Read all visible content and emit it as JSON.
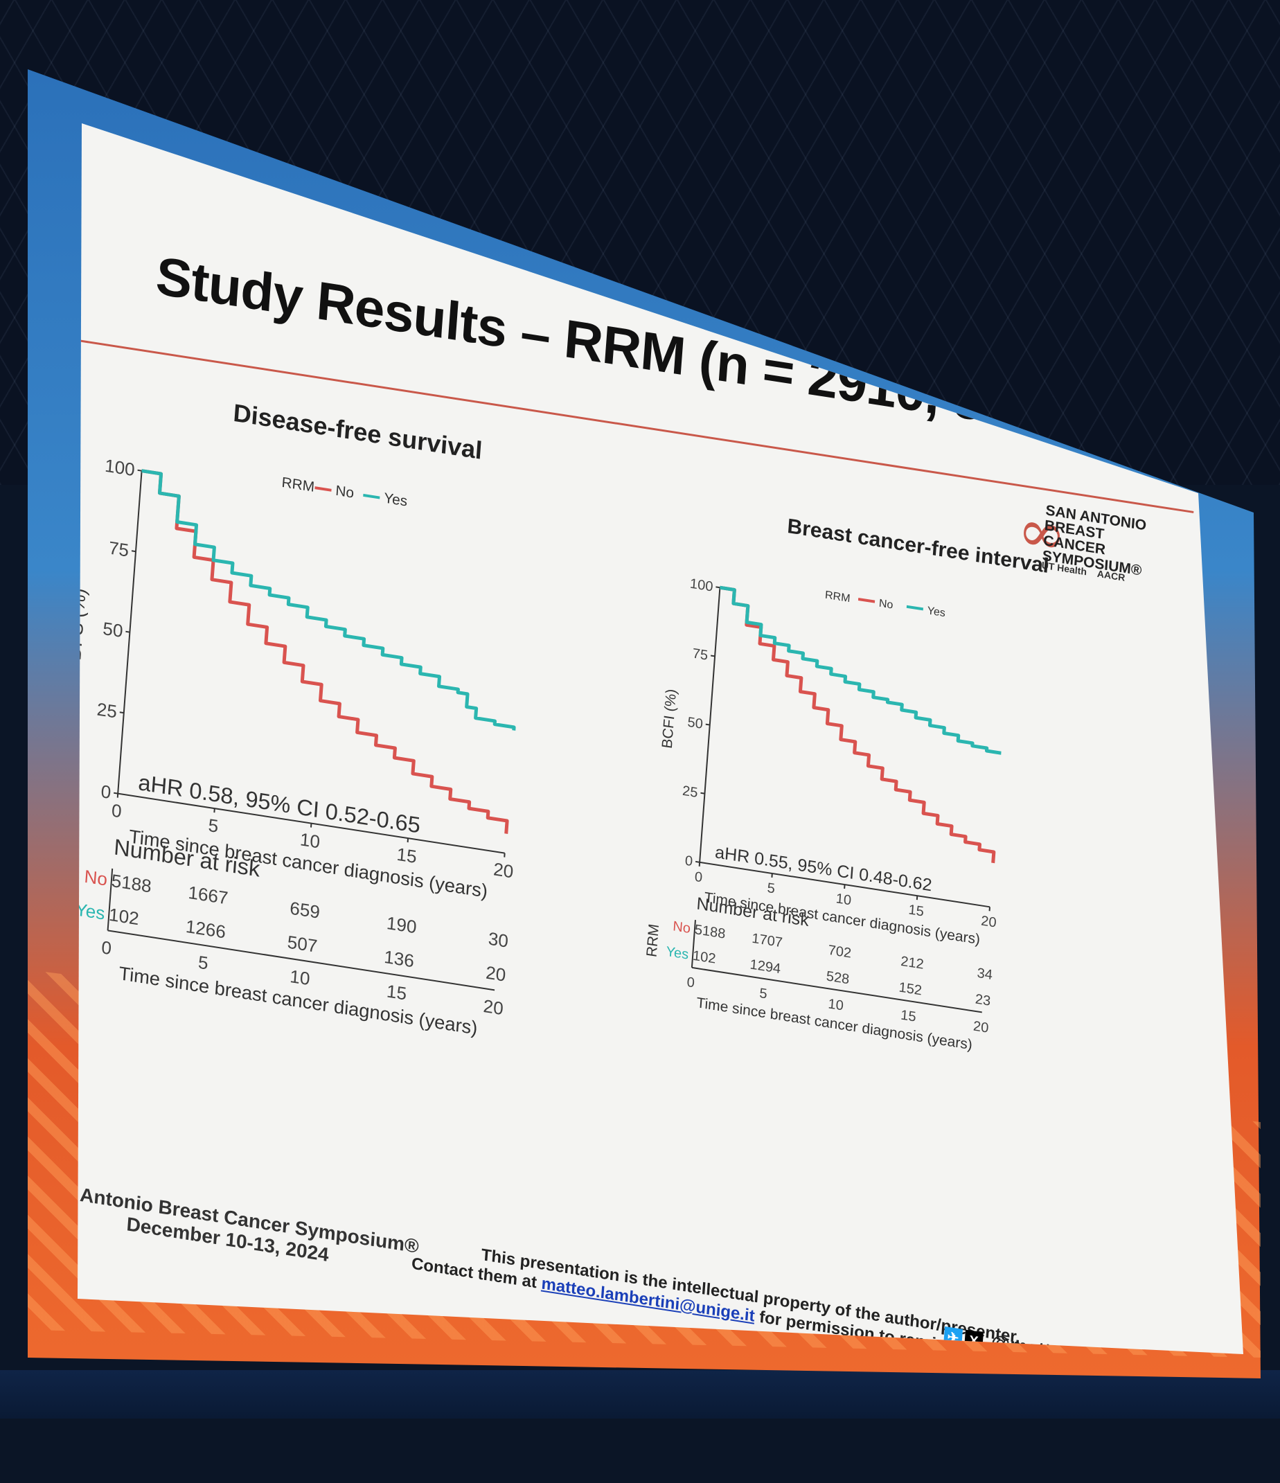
{
  "slide": {
    "title": "Study Results – RRM (n = 2910, 55.0%)",
    "logo": {
      "lines": [
        "SAN ANTONIO",
        "BREAST CANCER",
        "SYMPOSIUM®"
      ],
      "partner1": "UT Health",
      "partner2": "AACR"
    },
    "footer": {
      "conference": "San Antonio Breast Cancer Symposium®",
      "dates": "December 10-13, 2024",
      "ip_notice": "This presentation is the intellectual property of the author/presenter.",
      "contact_prefix": "Contact them at",
      "contact_email": "matteo.lambertini@unige.it",
      "contact_suffix": "for permission to reprint and/or distribute",
      "handle": "@matteolambe"
    }
  },
  "colors": {
    "no": "#d9534f",
    "yes": "#2bb6b0",
    "axis": "#333333",
    "title_rule": "#c9584a"
  },
  "chart_data": [
    {
      "type": "line",
      "title": "Disease-free survival",
      "xlabel": "Time since breast cancer diagnosis (years)",
      "ylabel": "DFS (%)",
      "xticks": [
        0,
        5,
        10,
        15,
        20
      ],
      "yticks": [
        0,
        25,
        50,
        75,
        100
      ],
      "xlim": [
        0,
        20
      ],
      "ylim": [
        0,
        100
      ],
      "legend": {
        "title": "RRM",
        "entries": [
          "No",
          "Yes"
        ],
        "position": "top"
      },
      "annotation": "aHR 0.58, 95% CI 0.52-0.65",
      "series": [
        {
          "name": "No",
          "x": [
            0,
            1,
            2,
            3,
            4,
            5,
            6,
            7,
            8,
            9,
            10,
            11,
            12,
            13,
            14,
            15,
            16,
            17,
            18,
            19,
            20
          ],
          "y": [
            100,
            94,
            84,
            76,
            70,
            64,
            58,
            53,
            48,
            43,
            38,
            34,
            30,
            27,
            24,
            20,
            17,
            14,
            12,
            10,
            6
          ]
        },
        {
          "name": "Yes",
          "x": [
            0,
            1,
            2,
            3,
            4,
            5,
            6,
            7,
            8,
            9,
            10,
            11,
            12,
            13,
            14,
            15,
            16,
            17,
            17.5,
            18,
            19,
            20
          ],
          "y": [
            100,
            94,
            86,
            80,
            76,
            73,
            70,
            68,
            66,
            63,
            61,
            59,
            57,
            55,
            53,
            51,
            48,
            47,
            43,
            40,
            39,
            38
          ]
        }
      ],
      "risk_table": {
        "title": "Number at risk",
        "group_label": "RRM",
        "xlabel": "Time since breast cancer diagnosis (years)",
        "rows": [
          {
            "name": "No",
            "values": [
              "5188",
              "1667",
              "659",
              "190",
              "30"
            ]
          },
          {
            "name": "Yes",
            "values": [
              "102",
              "1266",
              "507",
              "136",
              "20"
            ]
          }
        ]
      }
    },
    {
      "type": "line",
      "title": "Breast cancer-free interval",
      "xlabel": "Time since breast cancer diagnosis (years)",
      "ylabel": "BCFI (%)",
      "xticks": [
        0,
        5,
        10,
        15,
        20
      ],
      "yticks": [
        0,
        25,
        50,
        75,
        100
      ],
      "xlim": [
        0,
        20
      ],
      "ylim": [
        0,
        100
      ],
      "legend": {
        "title": "RRM",
        "entries": [
          "No",
          "Yes"
        ],
        "position": "top"
      },
      "annotation": "aHR 0.55, 95% CI 0.48-0.62",
      "series": [
        {
          "name": "No",
          "x": [
            0,
            1,
            2,
            3,
            4,
            5,
            6,
            7,
            8,
            9,
            10,
            11,
            12,
            13,
            14,
            15,
            16,
            17,
            18,
            19,
            20
          ],
          "y": [
            100,
            95,
            88,
            82,
            77,
            72,
            67,
            62,
            57,
            52,
            48,
            44,
            40,
            37,
            34,
            30,
            27,
            24,
            22,
            20,
            16
          ]
        },
        {
          "name": "Yes",
          "x": [
            0,
            1,
            2,
            3,
            4,
            5,
            6,
            7,
            8,
            9,
            10,
            11,
            12,
            13,
            14,
            15,
            16,
            17,
            18,
            19,
            20
          ],
          "y": [
            100,
            95,
            89,
            85,
            83,
            81,
            79,
            77,
            75,
            73,
            71,
            69,
            68,
            66,
            64,
            62,
            60,
            58,
            57,
            56,
            56
          ]
        }
      ],
      "risk_table": {
        "title": "Number at risk",
        "group_label": "RRM",
        "xlabel": "Time since breast cancer diagnosis (years)",
        "rows": [
          {
            "name": "No",
            "values": [
              "5188",
              "1707",
              "702",
              "212",
              "34"
            ]
          },
          {
            "name": "Yes",
            "values": [
              "102",
              "1294",
              "528",
              "152",
              "23"
            ]
          }
        ]
      }
    }
  ]
}
